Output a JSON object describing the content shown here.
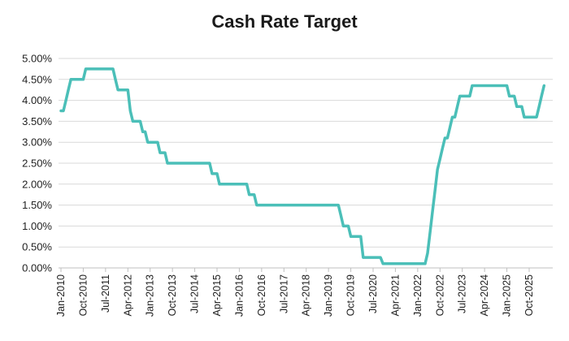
{
  "chart_data": {
    "type": "line",
    "title": "Cash Rate Target",
    "xlabel": "",
    "ylabel": "",
    "ylim": [
      0,
      5
    ],
    "yticks": [
      "0.00%",
      "0.50%",
      "1.00%",
      "1.50%",
      "2.00%",
      "2.50%",
      "3.00%",
      "3.50%",
      "4.00%",
      "4.50%",
      "5.00%"
    ],
    "xticks": [
      "Jan-2010",
      "Oct-2010",
      "Jul-2011",
      "Apr-2012",
      "Jan-2013",
      "Oct-2013",
      "Jul-2014",
      "Apr-2015",
      "Jan-2016",
      "Oct-2016",
      "Jul-2017",
      "Apr-2018",
      "Jan-2019",
      "Oct-2019",
      "Jul-2020",
      "Apr-2021",
      "Jan-2022",
      "Oct-2022",
      "Jul-2023",
      "Apr-2024",
      "Jan-2025",
      "Oct-2025"
    ],
    "grid": true,
    "line_color": "#4bbfb8",
    "series": [
      {
        "name": "",
        "points": [
          [
            "2010-01",
            3.75
          ],
          [
            "2010-02",
            3.75
          ],
          [
            "2010-03",
            4.0
          ],
          [
            "2010-04",
            4.25
          ],
          [
            "2010-05",
            4.5
          ],
          [
            "2010-06",
            4.5
          ],
          [
            "2010-07",
            4.5
          ],
          [
            "2010-08",
            4.5
          ],
          [
            "2010-09",
            4.5
          ],
          [
            "2010-10",
            4.5
          ],
          [
            "2010-11",
            4.75
          ],
          [
            "2011-10",
            4.75
          ],
          [
            "2011-11",
            4.5
          ],
          [
            "2011-12",
            4.25
          ],
          [
            "2012-04",
            4.25
          ],
          [
            "2012-05",
            3.75
          ],
          [
            "2012-06",
            3.5
          ],
          [
            "2012-09",
            3.5
          ],
          [
            "2012-10",
            3.25
          ],
          [
            "2012-11",
            3.25
          ],
          [
            "2012-12",
            3.0
          ],
          [
            "2013-04",
            3.0
          ],
          [
            "2013-05",
            2.75
          ],
          [
            "2013-07",
            2.75
          ],
          [
            "2013-08",
            2.5
          ],
          [
            "2015-01",
            2.5
          ],
          [
            "2015-02",
            2.25
          ],
          [
            "2015-04",
            2.25
          ],
          [
            "2015-05",
            2.0
          ],
          [
            "2016-04",
            2.0
          ],
          [
            "2016-05",
            1.75
          ],
          [
            "2016-07",
            1.75
          ],
          [
            "2016-08",
            1.5
          ],
          [
            "2019-05",
            1.5
          ],
          [
            "2019-06",
            1.25
          ],
          [
            "2019-07",
            1.0
          ],
          [
            "2019-09",
            1.0
          ],
          [
            "2019-10",
            0.75
          ],
          [
            "2020-02",
            0.75
          ],
          [
            "2020-03",
            0.25
          ],
          [
            "2020-10",
            0.25
          ],
          [
            "2020-11",
            0.1
          ],
          [
            "2022-04",
            0.1
          ],
          [
            "2022-05",
            0.35
          ],
          [
            "2022-06",
            0.85
          ],
          [
            "2022-07",
            1.35
          ],
          [
            "2022-08",
            1.85
          ],
          [
            "2022-09",
            2.35
          ],
          [
            "2022-10",
            2.6
          ],
          [
            "2022-11",
            2.85
          ],
          [
            "2022-12",
            3.1
          ],
          [
            "2023-01",
            3.1
          ],
          [
            "2023-02",
            3.35
          ],
          [
            "2023-03",
            3.6
          ],
          [
            "2023-04",
            3.6
          ],
          [
            "2023-05",
            3.85
          ],
          [
            "2023-06",
            4.1
          ],
          [
            "2023-10",
            4.1
          ],
          [
            "2023-11",
            4.35
          ],
          [
            "2025-01",
            4.35
          ],
          [
            "2025-02",
            4.1
          ],
          [
            "2025-04",
            4.1
          ],
          [
            "2025-05",
            3.85
          ],
          [
            "2025-07",
            3.85
          ],
          [
            "2025-08",
            3.6
          ],
          [
            "2026-01",
            3.6
          ],
          [
            "2026-02",
            3.85
          ],
          [
            "2026-03",
            4.1
          ],
          [
            "2026-04",
            4.35
          ]
        ]
      }
    ]
  }
}
